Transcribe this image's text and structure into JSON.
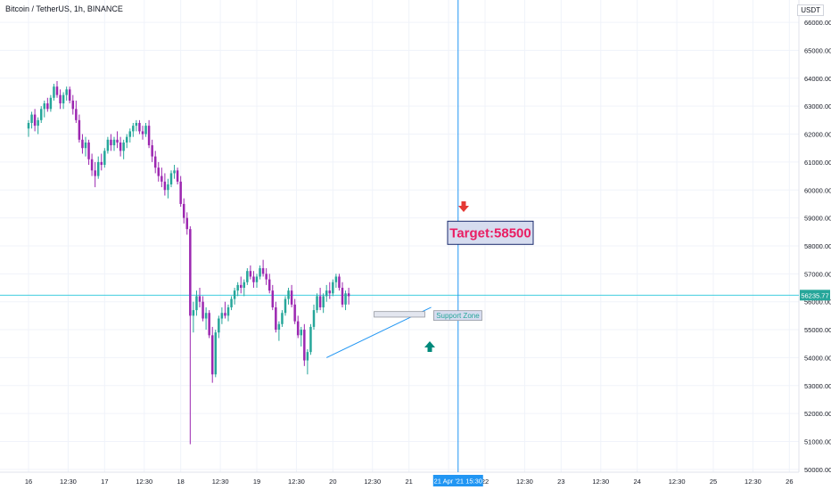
{
  "header": {
    "symbol_title": "Bitcoin / TetherUS, 1h, BINANCE",
    "currency": "USDT"
  },
  "colors": {
    "up": "#26a69a",
    "down": "#9c27b0",
    "last_price_line": "#26c6da",
    "cursor_line": "#2196f3",
    "target_text": "#e91e63",
    "target_bg": "#d6dcef",
    "target_border": "#1a2a6c",
    "support_text": "#26a69a",
    "arrow_down": "#e53935",
    "arrow_up": "#00897b",
    "grid": "#f0f3fa",
    "axis_text": "#131722"
  },
  "chart_data": {
    "type": "candlestick",
    "y_axis": {
      "min": 49900,
      "max": 66800,
      "ticks": [
        50000,
        51000,
        52000,
        53000,
        54000,
        55000,
        56000,
        57000,
        58000,
        59000,
        60000,
        61000,
        62000,
        63000,
        64000,
        65000,
        66000
      ],
      "tick_labels": [
        "50000.00",
        "51000.00",
        "52000.00",
        "53000.00",
        "54000.00",
        "55000.00",
        "56000.00",
        "57000.00",
        "58000.00",
        "59000.00",
        "60000.00",
        "61000.00",
        "62000.00",
        "63000.00",
        "64000.00",
        "65000.00",
        "66000.00"
      ]
    },
    "x_axis": {
      "tick_labels": [
        "16",
        "12:30",
        "17",
        "12:30",
        "18",
        "12:30",
        "19",
        "12:30",
        "20",
        "12:30",
        "21",
        "12:30",
        "22",
        "12:30",
        "23",
        "12:30",
        "24",
        "12:30",
        "25",
        "12:30",
        "26"
      ],
      "tick_hours": [
        0,
        12.5,
        24,
        36.5,
        48,
        60.5,
        72,
        84.5,
        96,
        108.5,
        120,
        132.5,
        144,
        156.5,
        168,
        180.5,
        192,
        204.5,
        216,
        228.5,
        240
      ],
      "start_hour": -9,
      "end_hour": 243,
      "cursor_label": "21 Apr '21  15:30",
      "cursor_hour": 135.5
    },
    "candles": [
      [
        62200,
        62500,
        61900,
        62400
      ],
      [
        62400,
        62800,
        62200,
        62700
      ],
      [
        62700,
        62900,
        62100,
        62300
      ],
      [
        62300,
        62600,
        62000,
        62500
      ],
      [
        62500,
        63000,
        62400,
        62900
      ],
      [
        62900,
        63200,
        62600,
        63100
      ],
      [
        63100,
        63300,
        62800,
        62900
      ],
      [
        62900,
        63400,
        62800,
        63300
      ],
      [
        63300,
        63800,
        63200,
        63700
      ],
      [
        63700,
        63900,
        63300,
        63400
      ],
      [
        63400,
        63600,
        62900,
        63100
      ],
      [
        63100,
        63500,
        62900,
        63400
      ],
      [
        63400,
        63700,
        63200,
        63600
      ],
      [
        63600,
        63700,
        63100,
        63200
      ],
      [
        63200,
        63400,
        62700,
        62900
      ],
      [
        62900,
        63200,
        62400,
        62500
      ],
      [
        62500,
        62700,
        61700,
        61800
      ],
      [
        61800,
        62000,
        61300,
        61500
      ],
      [
        61500,
        61900,
        61200,
        61700
      ],
      [
        61700,
        61800,
        60900,
        61100
      ],
      [
        61100,
        61300,
        60500,
        60700
      ],
      [
        60700,
        61000,
        60100,
        60500
      ],
      [
        60500,
        61200,
        60400,
        61000
      ],
      [
        61000,
        61300,
        60700,
        60900
      ],
      [
        60900,
        61500,
        60800,
        61400
      ],
      [
        61400,
        61900,
        61300,
        61800
      ],
      [
        61800,
        62000,
        61400,
        61600
      ],
      [
        61600,
        61900,
        61400,
        61800
      ],
      [
        61800,
        62100,
        61500,
        61700
      ],
      [
        61700,
        61900,
        61200,
        61400
      ],
      [
        61400,
        61800,
        61100,
        61700
      ],
      [
        61700,
        62000,
        61500,
        61900
      ],
      [
        61900,
        62200,
        61700,
        62100
      ],
      [
        62100,
        62400,
        61900,
        62300
      ],
      [
        62300,
        62500,
        62100,
        62400
      ],
      [
        62400,
        62500,
        62000,
        62100
      ],
      [
        62100,
        62300,
        61800,
        62000
      ],
      [
        62000,
        62400,
        61900,
        62300
      ],
      [
        62300,
        62500,
        61500,
        61600
      ],
      [
        61600,
        61800,
        61000,
        61200
      ],
      [
        61200,
        61400,
        60600,
        60800
      ],
      [
        60800,
        61000,
        60300,
        60500
      ],
      [
        60500,
        60800,
        60100,
        60300
      ],
      [
        60300,
        60600,
        59800,
        60000
      ],
      [
        60000,
        60400,
        59700,
        60200
      ],
      [
        60200,
        60700,
        60100,
        60600
      ],
      [
        60600,
        60900,
        60400,
        60700
      ],
      [
        60700,
        60800,
        60200,
        60300
      ],
      [
        60300,
        60500,
        59400,
        59500
      ],
      [
        59500,
        59700,
        58800,
        59000
      ],
      [
        59000,
        59200,
        58400,
        58600
      ],
      [
        58600,
        58700,
        50900,
        55500
      ],
      [
        55500,
        56000,
        54900,
        55700
      ],
      [
        55700,
        56400,
        55500,
        56200
      ],
      [
        56200,
        56500,
        55800,
        56000
      ],
      [
        56000,
        56200,
        55300,
        55400
      ],
      [
        55400,
        55800,
        55000,
        55600
      ],
      [
        55600,
        55700,
        54700,
        54800
      ],
      [
        54800,
        55100,
        53100,
        53400
      ],
      [
        53400,
        55000,
        53300,
        54900
      ],
      [
        54900,
        55500,
        54700,
        55400
      ],
      [
        55400,
        55800,
        55200,
        55600
      ],
      [
        55600,
        56000,
        55400,
        55500
      ],
      [
        55500,
        55900,
        55300,
        55800
      ],
      [
        55800,
        56200,
        55700,
        56100
      ],
      [
        56100,
        56500,
        55900,
        56400
      ],
      [
        56400,
        56700,
        56200,
        56600
      ],
      [
        56600,
        56900,
        56300,
        56500
      ],
      [
        56500,
        56800,
        56200,
        56700
      ],
      [
        56700,
        57200,
        56600,
        57100
      ],
      [
        57100,
        57300,
        56800,
        56900
      ],
      [
        56900,
        57100,
        56500,
        56700
      ],
      [
        56700,
        57000,
        56500,
        56900
      ],
      [
        56900,
        57300,
        56800,
        57200
      ],
      [
        57200,
        57500,
        56900,
        57000
      ],
      [
        57000,
        57200,
        56600,
        56800
      ],
      [
        56800,
        57000,
        56300,
        56400
      ],
      [
        56400,
        56600,
        55700,
        55800
      ],
      [
        55800,
        56000,
        54900,
        55000
      ],
      [
        55000,
        55300,
        54600,
        55200
      ],
      [
        55200,
        55700,
        55100,
        55600
      ],
      [
        55600,
        56200,
        55500,
        56100
      ],
      [
        56100,
        56500,
        55900,
        56400
      ],
      [
        56400,
        56600,
        55800,
        55900
      ],
      [
        55900,
        56100,
        55200,
        55300
      ],
      [
        55300,
        55500,
        54700,
        54800
      ],
      [
        54800,
        55100,
        54400,
        55000
      ],
      [
        55000,
        55200,
        53700,
        53900
      ],
      [
        53900,
        54300,
        53400,
        54200
      ],
      [
        54200,
        55200,
        54100,
        55100
      ],
      [
        55100,
        55900,
        55000,
        55700
      ],
      [
        55700,
        56300,
        55600,
        56200
      ],
      [
        56200,
        56500,
        55700,
        55800
      ],
      [
        55800,
        56300,
        55600,
        56200
      ],
      [
        56200,
        56600,
        56000,
        56400
      ],
      [
        56400,
        56700,
        56100,
        56300
      ],
      [
        56300,
        56800,
        56200,
        56700
      ],
      [
        56700,
        57000,
        56500,
        56900
      ],
      [
        56900,
        57000,
        56400,
        56500
      ],
      [
        56500,
        56700,
        55800,
        55900
      ],
      [
        55900,
        56400,
        55700,
        56300
      ],
      [
        56300,
        56500,
        55900,
        56200
      ]
    ],
    "annotations": {
      "target_label": "Target:58500",
      "target_value": 58500,
      "support_label": "Support Zone",
      "support_zone": [
        55650,
        55450
      ],
      "support_zone_hours": [
        109,
        125
      ],
      "trendline": [
        [
          94,
          54000
        ],
        [
          127,
          55800
        ]
      ],
      "last_price": 56235.77,
      "last_price_label": "56235.77"
    }
  }
}
